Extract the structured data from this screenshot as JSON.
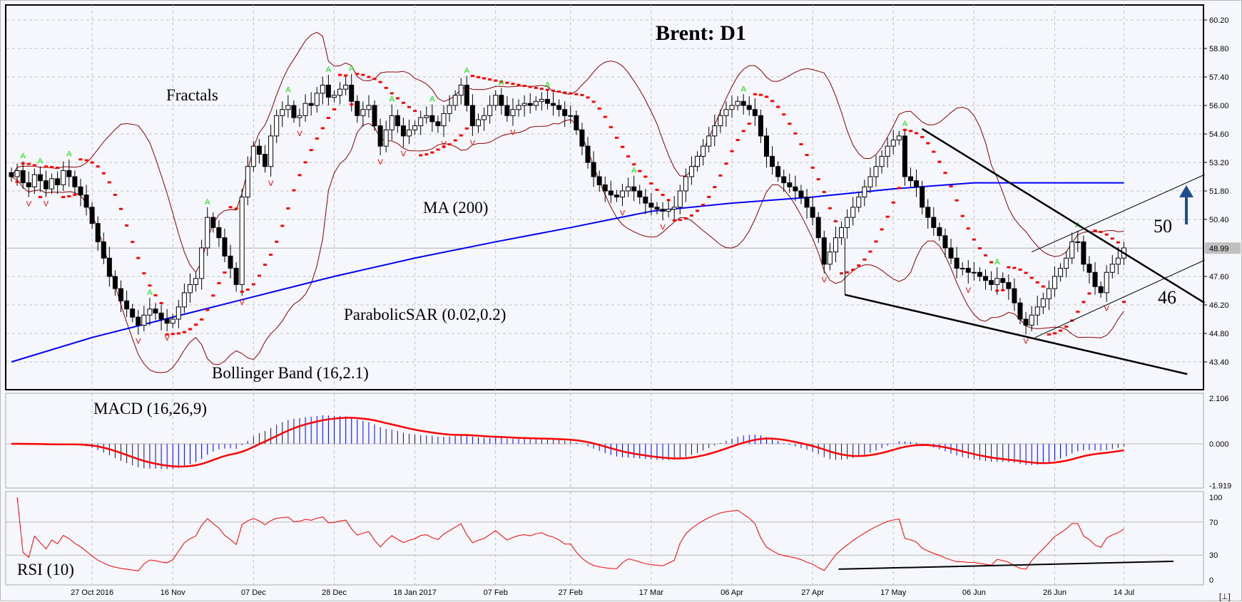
{
  "chart_data": [
    {
      "type": "candlestick",
      "title": "Brent: D1",
      "symbol": "Brent",
      "timeframe": "D1",
      "y_ticks": [
        "60.20",
        "58.80",
        "57.40",
        "56.00",
        "54.60",
        "53.20",
        "51.80",
        "50.40",
        "47.60",
        "46.20",
        "44.80",
        "43.40"
      ],
      "ylim": [
        42.4,
        60.9
      ],
      "current_price": "48.99",
      "x_ticks": [
        "27 Oct 2016",
        "16 Nov",
        "07 Dec",
        "28 Dec",
        "18 Jan 2017",
        "07 Feb",
        "27 Feb",
        "17 Mar",
        "06 Apr",
        "27 Apr",
        "17 May",
        "06 Jun",
        "26 Jun",
        "14 Jul"
      ],
      "x_tick_bar_index": [
        14,
        28,
        42,
        56,
        70,
        84,
        97,
        111,
        125,
        139,
        153,
        167,
        181,
        193
      ],
      "closes": [
        52.5,
        52.8,
        52.2,
        52.0,
        52.6,
        52.3,
        51.9,
        52.4,
        52.1,
        52.8,
        52.5,
        52.0,
        51.6,
        51.0,
        50.2,
        49.3,
        48.5,
        47.6,
        47.0,
        46.4,
        46.0,
        45.6,
        45.2,
        45.7,
        46.0,
        45.8,
        45.5,
        45.3,
        45.5,
        46.1,
        46.8,
        47.2,
        47.5,
        49.0,
        50.5,
        50.0,
        49.5,
        48.6,
        48.0,
        47.2,
        51.5,
        53.0,
        54.0,
        53.6,
        53.0,
        54.5,
        55.5,
        55.8,
        56.0,
        55.4,
        55.5,
        56.1,
        56.0,
        56.6,
        57.0,
        56.4,
        56.5,
        56.8,
        57.0,
        56.2,
        55.5,
        55.8,
        56.0,
        55.0,
        54.0,
        54.8,
        55.5,
        55.0,
        54.5,
        54.8,
        55.0,
        55.4,
        55.5,
        55.2,
        55.0,
        55.6,
        56.0,
        56.5,
        57.0,
        56.0,
        55.0,
        55.3,
        55.5,
        56.0,
        56.5,
        56.0,
        55.5,
        55.8,
        56.0,
        56.1,
        56.0,
        56.2,
        56.3,
        56.1,
        56.0,
        55.8,
        55.5,
        55.5,
        54.8,
        54.0,
        53.2,
        52.5,
        52.1,
        51.8,
        51.6,
        51.5,
        51.8,
        52.0,
        51.8,
        51.5,
        51.2,
        51.0,
        50.9,
        50.8,
        50.9,
        51.0,
        51.8,
        52.5,
        53.0,
        53.5,
        54.0,
        54.5,
        55.0,
        55.5,
        55.8,
        56.0,
        56.2,
        56.0,
        55.8,
        55.5,
        54.5,
        53.5,
        53.0,
        52.5,
        52.2,
        52.0,
        51.8,
        51.5,
        51.0,
        50.5,
        49.5,
        48.2,
        48.8,
        49.5,
        50.0,
        50.5,
        51.0,
        51.5,
        52.0,
        52.5,
        53.0,
        53.5,
        54.0,
        54.3,
        54.5,
        52.5,
        52.3,
        52.0,
        51.0,
        50.5,
        50.0,
        49.6,
        49.0,
        48.5,
        48.0,
        48.0,
        47.8,
        47.8,
        47.6,
        47.4,
        47.2,
        47.5,
        47.3,
        47.0,
        46.3,
        45.5,
        45.2,
        45.7,
        46.1,
        46.5,
        47.0,
        47.6,
        48.0,
        48.5,
        49.3,
        49.3,
        48.2,
        47.8,
        47.1,
        46.8,
        47.8,
        48.2,
        48.5,
        49.0
      ],
      "ma200_at_ticks": [
        43.4,
        44.6,
        45.6,
        46.6,
        47.6,
        48.5,
        49.3,
        50.0,
        50.8,
        51.2,
        51.5,
        51.9,
        52.2,
        52.2,
        52.2
      ],
      "ma200_tick_bar_index": [
        0,
        14,
        28,
        42,
        56,
        70,
        84,
        97,
        111,
        125,
        139,
        153,
        167,
        181,
        193
      ],
      "indicators": {
        "ma": {
          "label": "MA (200)",
          "period": 200,
          "color": "#0000ff"
        },
        "parabolic_sar": {
          "label": "ParabolicSAR (0.02,0.2)",
          "step": 0.02,
          "max": 0.2,
          "color": "#ff0000"
        },
        "bollinger": {
          "label": "Bollinger Band (16,2.1)",
          "period": 16,
          "deviation": 2.1,
          "color": "#8b0000"
        },
        "fractals": {
          "label": "Fractals",
          "up_color": "#00ee00",
          "down_color": "#ff0000"
        }
      },
      "trendlines": [
        {
          "from": [
            158,
            54.85
          ],
          "to": [
            207,
            46.3
          ],
          "style": "thick"
        },
        {
          "from": [
            144.6,
            46.7
          ],
          "to": [
            204,
            42.8
          ],
          "style": "thick"
        },
        {
          "from": [
            177.6,
            44.6
          ],
          "to": [
            207,
            48.4
          ],
          "style": "thin"
        },
        {
          "from": [
            177,
            48.8
          ],
          "to": [
            207,
            52.6
          ],
          "style": "thin"
        },
        {
          "from": [
            144.6,
            49.5
          ],
          "to": [
            144.6,
            46.7
          ],
          "style": "thin"
        }
      ],
      "annotations": {
        "level_high": "50",
        "level_low": "46",
        "arrow": "up",
        "arrow_color": "#1f4e8c"
      }
    },
    {
      "type": "macd",
      "label": "MACD (16,26,9)",
      "fast": 16,
      "slow": 26,
      "signal": 9,
      "y_ticks": [
        "2.106",
        "0.000",
        "-1.919"
      ],
      "ylim": [
        -1.919,
        2.106
      ],
      "histogram_color": "#0000ff",
      "signal_color": "#ff0000"
    },
    {
      "type": "rsi",
      "label": "RSI (10)",
      "period": 10,
      "y_ticks": [
        "100",
        "70",
        "30",
        "0"
      ],
      "ylim": [
        0,
        100
      ],
      "levels": [
        70,
        30
      ],
      "color": "#ff0000",
      "trendline": {
        "from": [
          143.5,
          13
        ],
        "to": [
          201.6,
          22.5
        ]
      }
    }
  ],
  "corner_button": "[⊥]"
}
